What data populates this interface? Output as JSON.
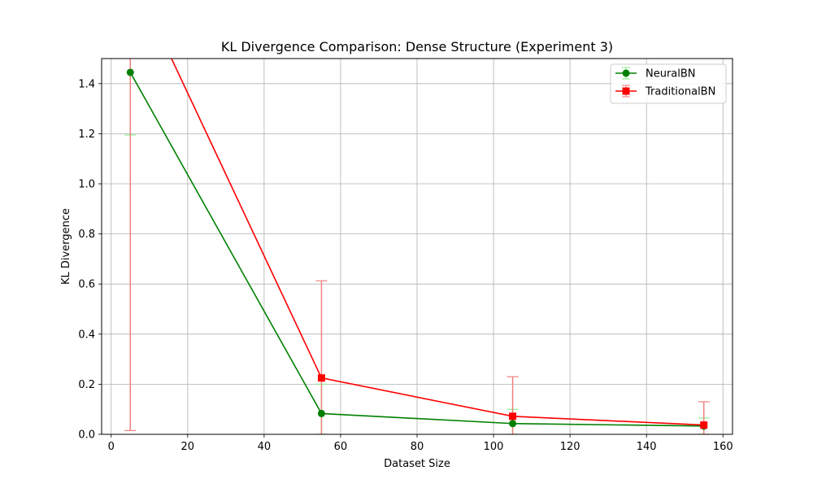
{
  "chart_data": {
    "type": "line",
    "title": "KL Divergence Comparison: Dense Structure (Experiment 3)",
    "xlabel": "Dataset Size",
    "ylabel": "KL Divergence",
    "xlim": [
      -2.5,
      162.5
    ],
    "ylim": [
      0,
      1.5
    ],
    "xticks": [
      0,
      20,
      40,
      60,
      80,
      100,
      120,
      140,
      160
    ],
    "yticks": [
      0.0,
      0.2,
      0.4,
      0.6,
      0.8,
      1.0,
      1.2,
      1.4
    ],
    "ytick_labels": [
      "0.0",
      "0.2",
      "0.4",
      "0.6",
      "0.8",
      "1.0",
      "1.2",
      "1.4"
    ],
    "grid": true,
    "legend_position": "top-right",
    "x": [
      5,
      55,
      105,
      155
    ],
    "series": [
      {
        "name": "NeuralBN",
        "values": [
          1.445,
          0.083,
          0.043,
          0.033
        ],
        "err_low": [
          0.25,
          0.083,
          0.043,
          0.033
        ],
        "err_high": [
          2.64,
          0.117,
          0.057,
          0.032
        ],
        "color": "#008000",
        "error_color": "#90ee90",
        "marker": "circle"
      },
      {
        "name": "TraditionalBN",
        "values": [
          1.85,
          0.225,
          0.072,
          0.037
        ],
        "err_low": [
          1.835,
          0.225,
          0.072,
          0.037
        ],
        "err_high": [
          1.835,
          0.388,
          0.158,
          0.093
        ],
        "color": "#ff0000",
        "error_color": "#f08080",
        "marker": "square"
      }
    ]
  }
}
